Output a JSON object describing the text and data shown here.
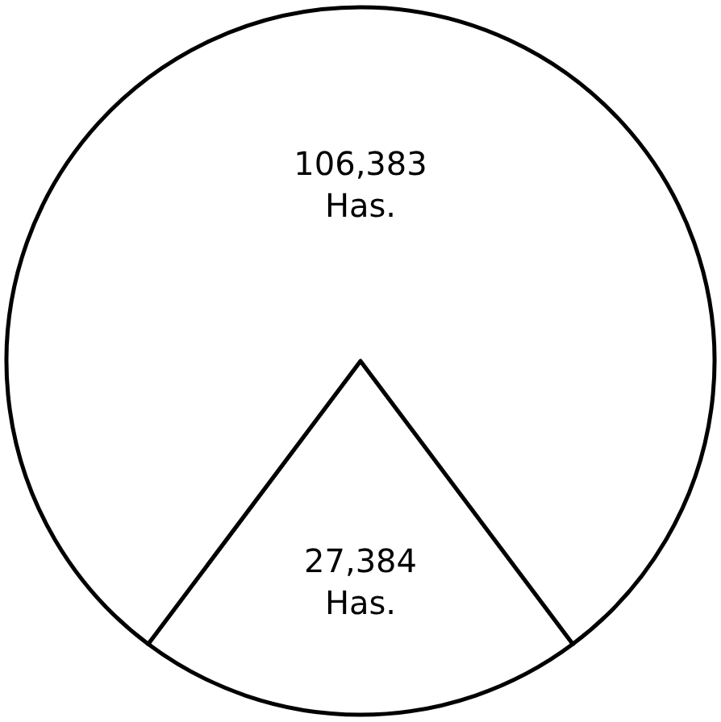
{
  "chart_data": {
    "type": "pie",
    "categories": [
      null,
      null
    ],
    "values": [
      27384,
      106383
    ],
    "colors": [
      "#ffffff",
      "#ffffff"
    ],
    "value_labels": [
      "27,384\nHas.",
      "106,383\nHas."
    ],
    "legend": false
  }
}
